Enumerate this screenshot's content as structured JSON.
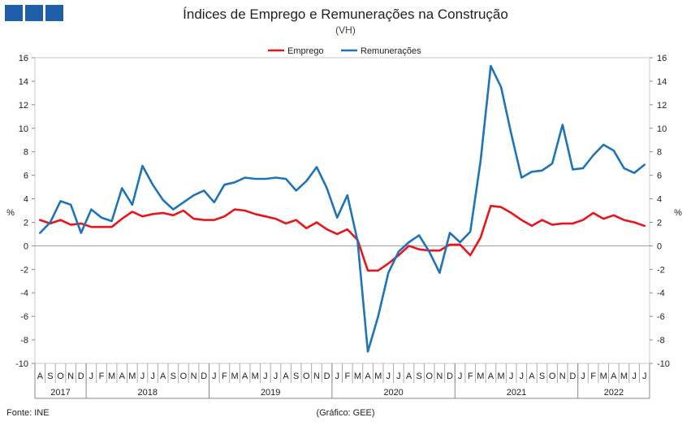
{
  "header": {
    "title": "Índices de Emprego e Remunerações na Construção",
    "subtitle": "(VH)"
  },
  "footer": {
    "source": "Fonte: INE",
    "graphic": "(Gráfico: GEE)"
  },
  "colors": {
    "emprego": "#e8161b",
    "remuneracoes": "#1f74b8",
    "logo": "#1f5fa8"
  },
  "chart_data": {
    "type": "line",
    "title": "Índices de Emprego e Remunerações na Construção",
    "subtitle": "(VH)",
    "ylabel": "%",
    "ylim": [
      -10,
      16
    ],
    "yticks": [
      -10,
      -8,
      -6,
      -4,
      -2,
      0,
      2,
      4,
      6,
      8,
      10,
      12,
      14,
      16
    ],
    "legend_position": "top-center",
    "months": [
      "A",
      "S",
      "O",
      "N",
      "D",
      "J",
      "F",
      "M",
      "A",
      "M",
      "J",
      "J",
      "A",
      "S",
      "O",
      "N",
      "D",
      "J",
      "F",
      "M",
      "A",
      "M",
      "J",
      "J",
      "A",
      "S",
      "O",
      "N",
      "D",
      "J",
      "F",
      "M",
      "A",
      "M",
      "J",
      "J",
      "A",
      "S",
      "O",
      "N",
      "D",
      "J",
      "F",
      "M",
      "A",
      "M",
      "J",
      "J",
      "A",
      "S",
      "O",
      "N",
      "D",
      "J",
      "F",
      "M",
      "A",
      "M",
      "J",
      "J"
    ],
    "years": [
      {
        "label": "2017",
        "months": 5
      },
      {
        "label": "2018",
        "months": 12
      },
      {
        "label": "2019",
        "months": 12
      },
      {
        "label": "2020",
        "months": 12
      },
      {
        "label": "2021",
        "months": 12
      },
      {
        "label": "2022",
        "months": 7
      }
    ],
    "series": [
      {
        "name": "Emprego",
        "color": "#e8161b",
        "values": [
          2.2,
          1.9,
          2.2,
          1.8,
          1.9,
          1.6,
          1.6,
          1.6,
          2.3,
          2.9,
          2.5,
          2.7,
          2.8,
          2.6,
          3.0,
          2.3,
          2.2,
          2.2,
          2.5,
          3.1,
          3.0,
          2.7,
          2.5,
          2.3,
          1.9,
          2.2,
          1.5,
          2.0,
          1.4,
          1.0,
          1.4,
          0.5,
          -2.1,
          -2.1,
          -1.5,
          -0.8,
          0.0,
          -0.3,
          -0.4,
          -0.4,
          0.1,
          0.1,
          -0.8,
          0.7,
          3.4,
          3.3,
          2.8,
          2.2,
          1.7,
          2.2,
          1.8,
          1.9,
          1.9,
          2.2,
          2.8,
          2.3,
          2.6,
          2.2,
          2.0,
          1.7
        ]
      },
      {
        "name": "Remunerações",
        "color": "#1f74b8",
        "values": [
          1.1,
          2.0,
          3.8,
          3.5,
          1.1,
          3.1,
          2.4,
          2.1,
          4.9,
          3.5,
          6.8,
          5.2,
          3.9,
          3.1,
          3.7,
          4.3,
          4.7,
          3.7,
          5.2,
          5.4,
          5.8,
          5.7,
          5.7,
          5.8,
          5.7,
          4.7,
          5.5,
          6.7,
          4.9,
          2.4,
          4.3,
          0.4,
          -9.0,
          -6.0,
          -2.3,
          -0.5,
          0.3,
          0.9,
          -0.5,
          -2.3,
          1.1,
          0.3,
          1.2,
          7.2,
          15.3,
          13.5,
          9.5,
          5.8,
          6.3,
          6.4,
          7.0,
          10.3,
          6.5,
          6.6,
          7.7,
          8.6,
          8.1,
          6.6,
          6.2,
          6.9
        ]
      }
    ]
  }
}
